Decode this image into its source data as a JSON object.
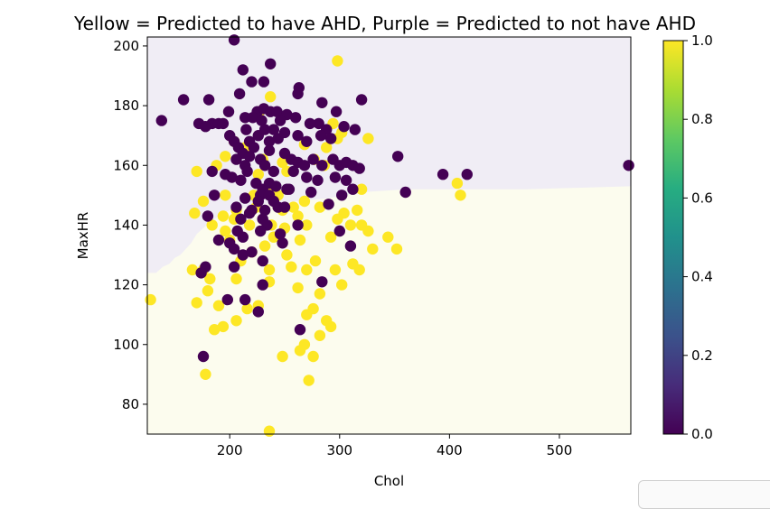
{
  "chart_data": {
    "type": "scatter",
    "title": "Yellow = Predicted to have AHD, Purple = Predicted to not have AHD",
    "xlabel": "Chol",
    "ylabel": "MaxHR",
    "xlim": [
      125,
      565
    ],
    "ylim": [
      70,
      203
    ],
    "xticks": [
      200,
      300,
      400,
      500
    ],
    "yticks": [
      80,
      100,
      120,
      140,
      160,
      180,
      200
    ],
    "colorbar": {
      "min": 0.0,
      "max": 1.0,
      "ticks": [
        "0.0",
        "0.2",
        "0.4",
        "0.6",
        "0.8",
        "1.0"
      ],
      "colormap": "viridis"
    },
    "decision_boundary": {
      "note_colors": {
        "region_0": "#f0edf5",
        "region_1": "#fcfcee"
      },
      "boundary": [
        [
          125,
          124
        ],
        [
          133,
          124
        ],
        [
          139,
          126
        ],
        [
          145,
          127
        ],
        [
          150,
          129
        ],
        [
          155,
          130
        ],
        [
          160,
          132
        ],
        [
          165,
          134
        ],
        [
          170,
          137
        ],
        [
          176,
          139
        ],
        [
          182,
          141
        ],
        [
          190,
          143
        ],
        [
          200,
          145
        ],
        [
          215,
          146
        ],
        [
          235,
          147
        ],
        [
          260,
          148
        ],
        [
          290,
          149
        ],
        [
          320,
          151
        ],
        [
          360,
          152
        ],
        [
          410,
          152
        ],
        [
          470,
          152
        ],
        [
          565,
          153
        ]
      ]
    },
    "colors": {
      "class_0": "#440154",
      "class_1": "#fde725"
    },
    "series": [
      {
        "values": [
          [
            204,
            202
          ],
          [
            237,
            194
          ],
          [
            212,
            192
          ],
          [
            231,
            188
          ],
          [
            220,
            188
          ],
          [
            209,
            184
          ],
          [
            158,
            182
          ],
          [
            181,
            182
          ],
          [
            263,
            186
          ],
          [
            262,
            184
          ],
          [
            284,
            181
          ],
          [
            320,
            182
          ],
          [
            199,
            178
          ],
          [
            225,
            178
          ],
          [
            231,
            179
          ],
          [
            237,
            178
          ],
          [
            243,
            178
          ],
          [
            252,
            177
          ],
          [
            214,
            176
          ],
          [
            221,
            176
          ],
          [
            281,
            174
          ],
          [
            297,
            178
          ],
          [
            260,
            176
          ],
          [
            273,
            174
          ],
          [
            288,
            172
          ],
          [
            246,
            175
          ],
          [
            138,
            175
          ],
          [
            172,
            174
          ],
          [
            184,
            174
          ],
          [
            190,
            174
          ],
          [
            194,
            174
          ],
          [
            178,
            173
          ],
          [
            229,
            175
          ],
          [
            215,
            172
          ],
          [
            232,
            172
          ],
          [
            240,
            172
          ],
          [
            304,
            173
          ],
          [
            314,
            172
          ],
          [
            200,
            170
          ],
          [
            204,
            168
          ],
          [
            208,
            166
          ],
          [
            212,
            164
          ],
          [
            218,
            168
          ],
          [
            222,
            166
          ],
          [
            226,
            170
          ],
          [
            236,
            168
          ],
          [
            244,
            169
          ],
          [
            250,
            171
          ],
          [
            262,
            170
          ],
          [
            270,
            168
          ],
          [
            283,
            170
          ],
          [
            292,
            169
          ],
          [
            206,
            162
          ],
          [
            214,
            160
          ],
          [
            218,
            163
          ],
          [
            228,
            162
          ],
          [
            236,
            165
          ],
          [
            250,
            164
          ],
          [
            256,
            162
          ],
          [
            262,
            161
          ],
          [
            268,
            160
          ],
          [
            276,
            162
          ],
          [
            284,
            160
          ],
          [
            294,
            162
          ],
          [
            300,
            160
          ],
          [
            306,
            161
          ],
          [
            312,
            160
          ],
          [
            318,
            159
          ],
          [
            202,
            156
          ],
          [
            210,
            155
          ],
          [
            216,
            158
          ],
          [
            232,
            160
          ],
          [
            240,
            158
          ],
          [
            258,
            158
          ],
          [
            270,
            156
          ],
          [
            280,
            155
          ],
          [
            296,
            156
          ],
          [
            306,
            155
          ],
          [
            353,
            163
          ],
          [
            394,
            157
          ],
          [
            416,
            157
          ],
          [
            563,
            160
          ],
          [
            184,
            158
          ],
          [
            196,
            157
          ],
          [
            224,
            154
          ],
          [
            230,
            152
          ],
          [
            236,
            154
          ],
          [
            242,
            153
          ],
          [
            252,
            152
          ],
          [
            186,
            150
          ],
          [
            214,
            149
          ],
          [
            228,
            150
          ],
          [
            236,
            150
          ],
          [
            240,
            148
          ],
          [
            244,
            146
          ],
          [
            254,
            152
          ],
          [
            274,
            151
          ],
          [
            302,
            150
          ],
          [
            312,
            152
          ],
          [
            206,
            146
          ],
          [
            220,
            145
          ],
          [
            226,
            148
          ],
          [
            232,
            145
          ],
          [
            250,
            146
          ],
          [
            290,
            147
          ],
          [
            360,
            151
          ],
          [
            180,
            143
          ],
          [
            210,
            142
          ],
          [
            218,
            144
          ],
          [
            230,
            142
          ],
          [
            234,
            140
          ],
          [
            262,
            140
          ],
          [
            207,
            138
          ],
          [
            228,
            138
          ],
          [
            246,
            137
          ],
          [
            300,
            138
          ],
          [
            190,
            135
          ],
          [
            200,
            134
          ],
          [
            212,
            136
          ],
          [
            248,
            134
          ],
          [
            204,
            132
          ],
          [
            212,
            130
          ],
          [
            220,
            131
          ],
          [
            230,
            128
          ],
          [
            310,
            133
          ],
          [
            178,
            126
          ],
          [
            204,
            126
          ],
          [
            174,
            124
          ],
          [
            230,
            120
          ],
          [
            284,
            121
          ],
          [
            198,
            115
          ],
          [
            214,
            115
          ],
          [
            226,
            111
          ],
          [
            264,
            105
          ],
          [
            176,
            96
          ]
        ]
      },
      {
        "values": [
          [
            298,
            195
          ],
          [
            237,
            183
          ],
          [
            227,
            178
          ],
          [
            294,
            174
          ],
          [
            302,
            171
          ],
          [
            326,
            169
          ],
          [
            204,
            168
          ],
          [
            214,
            166
          ],
          [
            268,
            167
          ],
          [
            288,
            166
          ],
          [
            298,
            169
          ],
          [
            196,
            163
          ],
          [
            230,
            162
          ],
          [
            248,
            161
          ],
          [
            277,
            162
          ],
          [
            188,
            160
          ],
          [
            226,
            157
          ],
          [
            252,
            158
          ],
          [
            286,
            160
          ],
          [
            170,
            158
          ],
          [
            222,
            150
          ],
          [
            235,
            151
          ],
          [
            244,
            150
          ],
          [
            268,
            148
          ],
          [
            320,
            152
          ],
          [
            407,
            154
          ],
          [
            410,
            150
          ],
          [
            176,
            148
          ],
          [
            196,
            150
          ],
          [
            224,
            146
          ],
          [
            248,
            145
          ],
          [
            258,
            146
          ],
          [
            262,
            143
          ],
          [
            282,
            146
          ],
          [
            304,
            144
          ],
          [
            316,
            145
          ],
          [
            206,
            145
          ],
          [
            194,
            143
          ],
          [
            184,
            140
          ],
          [
            168,
            144
          ],
          [
            196,
            138
          ],
          [
            204,
            142
          ],
          [
            218,
            140
          ],
          [
            238,
            140
          ],
          [
            250,
            139
          ],
          [
            270,
            140
          ],
          [
            298,
            142
          ],
          [
            310,
            140
          ],
          [
            320,
            140
          ],
          [
            326,
            138
          ],
          [
            240,
            136
          ],
          [
            264,
            135
          ],
          [
            344,
            136
          ],
          [
            200,
            135
          ],
          [
            232,
            133
          ],
          [
            292,
            136
          ],
          [
            330,
            132
          ],
          [
            352,
            132
          ],
          [
            210,
            128
          ],
          [
            220,
            131
          ],
          [
            252,
            130
          ],
          [
            256,
            126
          ],
          [
            278,
            128
          ],
          [
            312,
            127
          ],
          [
            236,
            125
          ],
          [
            166,
            125
          ],
          [
            176,
            125
          ],
          [
            270,
            125
          ],
          [
            296,
            125
          ],
          [
            318,
            125
          ],
          [
            182,
            122
          ],
          [
            206,
            122
          ],
          [
            236,
            121
          ],
          [
            262,
            119
          ],
          [
            282,
            117
          ],
          [
            302,
            120
          ],
          [
            180,
            118
          ],
          [
            190,
            113
          ],
          [
            170,
            114
          ],
          [
            128,
            115
          ],
          [
            216,
            112
          ],
          [
            226,
            113
          ],
          [
            270,
            110
          ],
          [
            276,
            112
          ],
          [
            206,
            108
          ],
          [
            194,
            106
          ],
          [
            186,
            105
          ],
          [
            288,
            108
          ],
          [
            292,
            106
          ],
          [
            282,
            103
          ],
          [
            268,
            100
          ],
          [
            248,
            96
          ],
          [
            264,
            98
          ],
          [
            276,
            96
          ],
          [
            178,
            90
          ],
          [
            272,
            88
          ],
          [
            236,
            71
          ]
        ]
      }
    ]
  }
}
